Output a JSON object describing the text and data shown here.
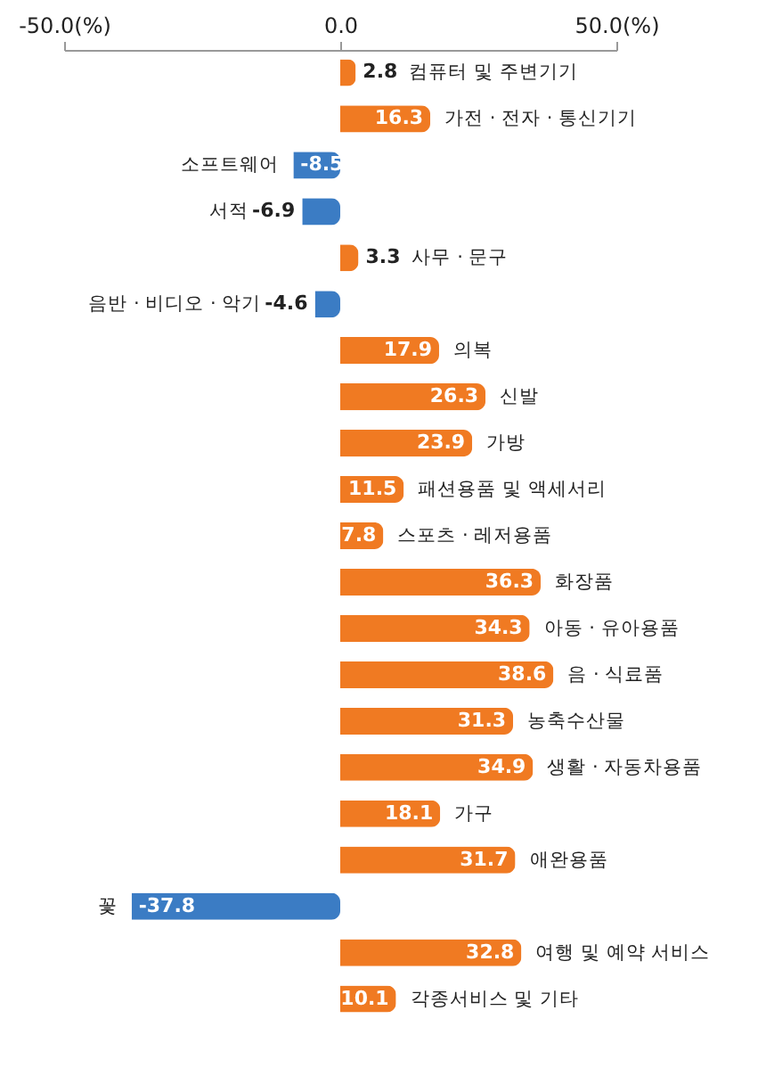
{
  "chart_data": {
    "type": "bar",
    "orientation": "horizontal",
    "categories": [
      "컴퓨터 및 주변기기",
      "가전 · 전자 · 통신기기",
      "소프트웨어",
      "서적",
      "사무 · 문구",
      "음반 · 비디오 · 악기",
      "의복",
      "신발",
      "가방",
      "패션용품 및 액세서리",
      "스포츠 · 레저용품",
      "화장품",
      "아동 · 유아용품",
      "음 · 식료품",
      "농축수산물",
      "생활 · 자동차용품",
      "가구",
      "애완용품",
      "꽃",
      "여행 및 예약 서비스",
      "각종서비스 및 기타"
    ],
    "values": [
      2.8,
      16.3,
      -8.5,
      -6.9,
      3.3,
      -4.6,
      17.9,
      26.3,
      23.9,
      11.5,
      7.8,
      36.3,
      34.3,
      38.6,
      31.3,
      34.9,
      18.1,
      31.7,
      -37.8,
      32.8,
      10.1
    ],
    "colors": [
      "#f07a22",
      "#f07a22",
      "#3b7cc4",
      "#3b7cc4",
      "#f07a22",
      "#3b7cc4",
      "#f07a22",
      "#f07a22",
      "#f07a22",
      "#f07a22",
      "#f07a22",
      "#f07a22",
      "#f07a22",
      "#f07a22",
      "#f07a22",
      "#f07a22",
      "#f07a22",
      "#f07a22",
      "#3b7cc4",
      "#f07a22",
      "#f07a22"
    ],
    "xlim": [
      -50,
      50
    ],
    "xticks": [
      {
        "value": -50,
        "label": "-50.0(%)"
      },
      {
        "value": 0,
        "label": "0.0"
      },
      {
        "value": 50,
        "label": "50.0(%)"
      }
    ],
    "tick_labels": "x",
    "grid": false,
    "data_labels": true
  }
}
